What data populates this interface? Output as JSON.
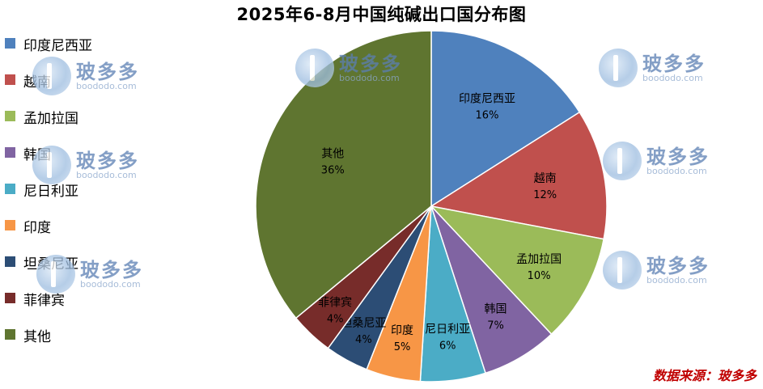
{
  "chart_data": {
    "type": "pie",
    "title": "2025年6-8月中国纯碱出口国分布图",
    "categories": [
      "印度尼西亚",
      "越南",
      "孟加拉国",
      "韩国",
      "尼日利亚",
      "印度",
      "坦桑尼亚",
      "菲律宾",
      "其他"
    ],
    "values": [
      16,
      12,
      10,
      7,
      6,
      5,
      4,
      4,
      36
    ],
    "value_labels": [
      "16%",
      "12%",
      "10%",
      "7%",
      "6%",
      "5%",
      "4%",
      "4%",
      "36%"
    ],
    "colors": [
      "#4f81bd",
      "#c0504d",
      "#9bbb59",
      "#8064a2",
      "#4bacc6",
      "#f79646",
      "#2c4d75",
      "#772c2a",
      "#5f7530"
    ],
    "legend_position": "left"
  },
  "source_note": "数据来源：玻多多",
  "watermark": {
    "brand": "玻多多",
    "url": "boododo.com"
  },
  "legend_icon": "square-swatch"
}
